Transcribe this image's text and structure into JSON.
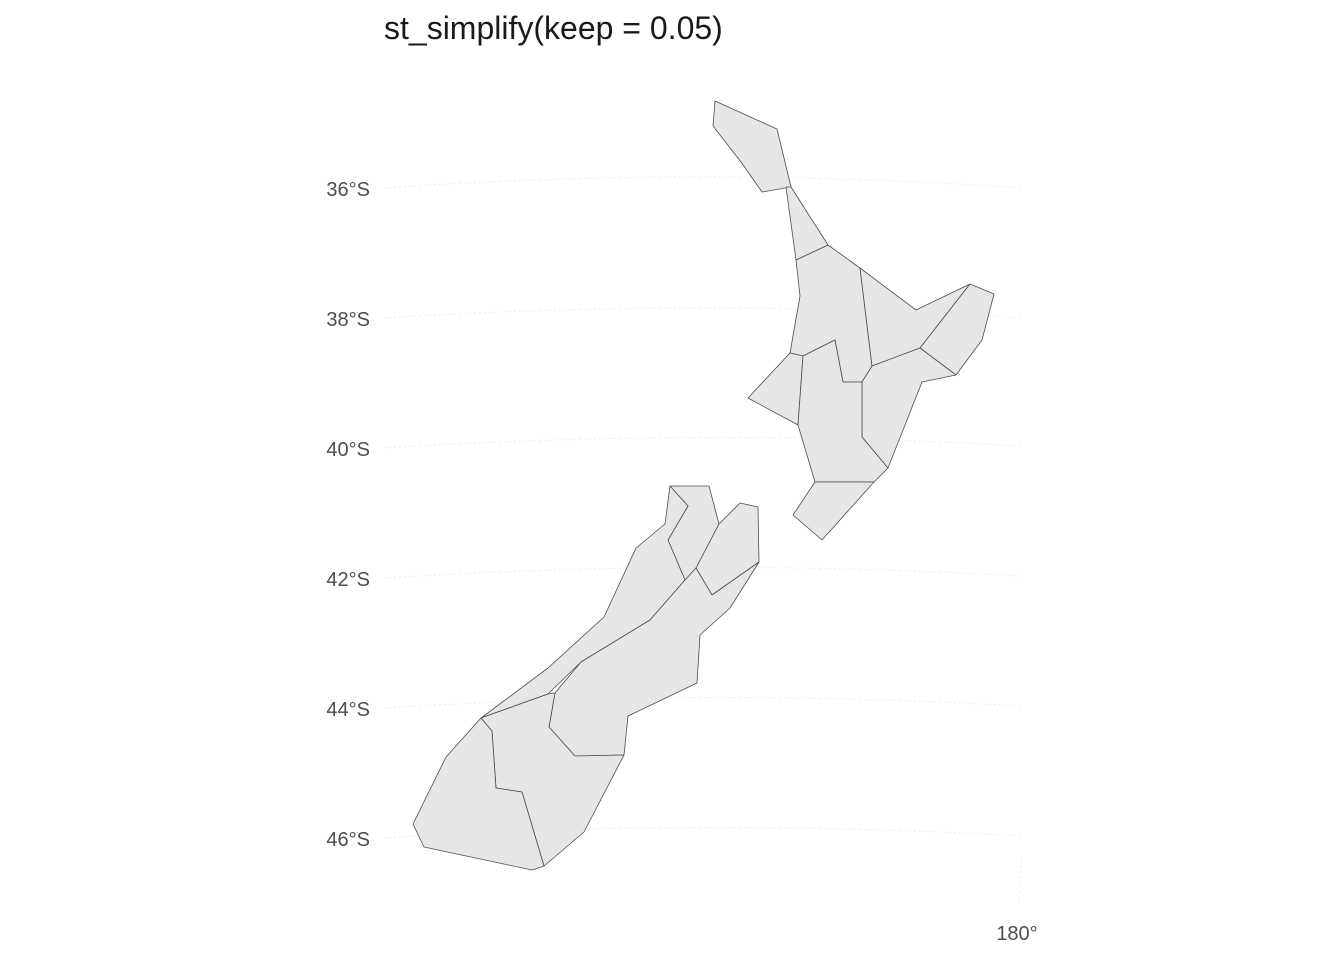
{
  "title": "st_simplify(keep = 0.05)",
  "map": {
    "fill_color": "#e6e6e6",
    "border_color": "#4d4d4d",
    "latitude_labels": [
      "36°S",
      "38°S",
      "40°S",
      "42°S",
      "44°S",
      "46°S"
    ],
    "longitude_labels": [
      "180°"
    ]
  }
}
